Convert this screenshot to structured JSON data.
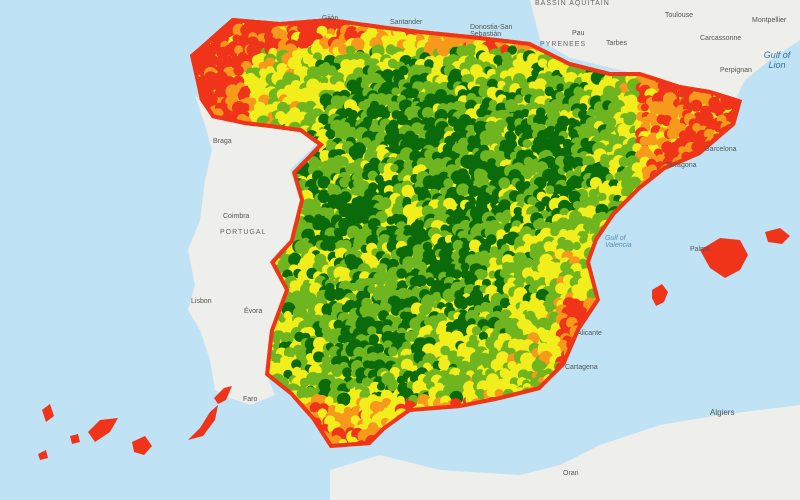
{
  "map": {
    "colors": {
      "sea": "#bfe3f5",
      "land": "#eeeeea",
      "dark_green": "#0b6b0b",
      "light_green": "#6fb51f",
      "yellow": "#f2ee1c",
      "orange": "#f79a1c",
      "red": "#f0341a"
    },
    "labels": {
      "bassin_aquitain": "BASSIN AQUITAIN",
      "toulouse": "Toulouse",
      "montpellier": "Montpellier",
      "carcassonne": "Carcassonne",
      "perpignan": "Perpignan",
      "gulf_of_lion": "Gulf of Lion",
      "pau": "Pau",
      "tarbes": "Tarbes",
      "pyrenees": "PYRENEES",
      "gijon": "Gijón",
      "santander": "Santander",
      "donostia": "Donostia-San Sebastián",
      "barcelona": "Barcelona",
      "tarragona": "Tarragona",
      "gulf_of_valencia": "Gulf of Valencia",
      "palma": "Palma",
      "alicante": "Alicante",
      "cartagena": "Cartagena",
      "algiers": "Algiers",
      "oran": "Oran",
      "portugal": "PORTUGAL",
      "coimbra": "Coimbra",
      "braga": "Braga",
      "lisbon": "Lisbon",
      "evora": "Évora",
      "faro": "Faro"
    }
  }
}
